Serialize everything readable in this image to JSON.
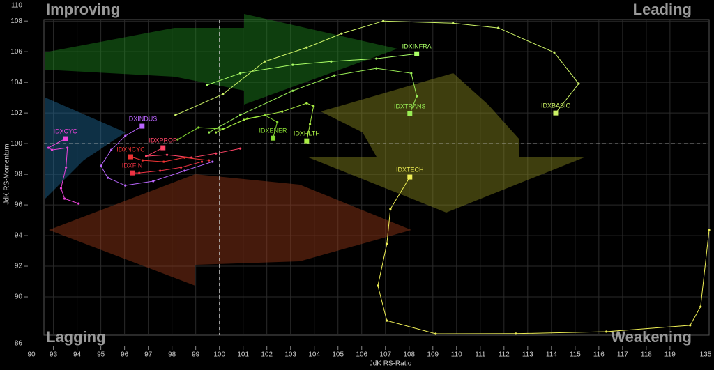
{
  "chart_data": {
    "type": "rrg",
    "x_label": "JdK RS-Ratio",
    "y_label": "JdK RS-Momentum",
    "quadrants": {
      "top_left": "Improving",
      "top_right": "Leading",
      "bottom_left": "Lagging",
      "bottom_right": "Weakening"
    },
    "xlim": [
      92.6,
      120.65
    ],
    "ylim": [
      87.5,
      108.1
    ],
    "xticks": [
      93,
      94,
      95,
      96,
      97,
      98,
      99,
      100,
      101,
      102,
      103,
      104,
      105,
      106,
      107,
      108,
      109,
      110,
      111,
      112,
      113,
      114,
      115,
      116,
      117,
      118,
      119
    ],
    "yticks": [
      90,
      92,
      94,
      96,
      98,
      100,
      102,
      104,
      106,
      108
    ],
    "x_break_ticks": [
      90,
      135
    ],
    "y_break_ticks": [
      110,
      86
    ],
    "reference_x": 100,
    "reference_y": 100,
    "grid": true,
    "series": [
      {
        "name": "IDXINFRA",
        "color": "#aaff66",
        "x": [
          99.47,
          100.88,
          103.09,
          104.71,
          106.62,
          108.32
        ],
        "y": [
          103.82,
          104.59,
          105.14,
          105.36,
          105.55,
          105.86
        ]
      },
      {
        "name": "IDXBASIC",
        "color": "#ccf266",
        "x": [
          98.15,
          100.15,
          101.91,
          103.68,
          105.15,
          106.91,
          109.85,
          111.76,
          114.12,
          115.15,
          114.18
        ],
        "y": [
          101.86,
          103.23,
          105.36,
          106.27,
          107.18,
          108.0,
          107.86,
          107.55,
          105.95,
          103.91,
          102.0
        ]
      },
      {
        "name": "IDXTRANS",
        "color": "#99ee55",
        "x": [
          99.56,
          100.88,
          103.09,
          104.85,
          106.62,
          108.09,
          108.32,
          108.03
        ],
        "y": [
          100.73,
          101.86,
          103.45,
          104.45,
          104.91,
          104.59,
          103.09,
          101.95
        ]
      },
      {
        "name": "IDXENER",
        "color": "#88dd33",
        "x": [
          98.24,
          99.12,
          100.15,
          101.18,
          101.91,
          102.44,
          102.26
        ],
        "y": [
          100.27,
          101.05,
          100.95,
          101.64,
          101.86,
          101.41,
          100.36
        ]
      },
      {
        "name": "IDXHLTH",
        "color": "#aaee44",
        "x": [
          99.85,
          101.03,
          102.65,
          103.68,
          103.97,
          103.82,
          103.68
        ],
        "y": [
          100.73,
          101.55,
          102.09,
          102.64,
          102.45,
          101.27,
          100.18
        ]
      },
      {
        "name": "IDXINDUS",
        "color": "#bb66ff",
        "x": [
          99.71,
          98.53,
          97.21,
          96.03,
          95.29,
          95.0,
          95.44,
          96.03,
          96.74
        ],
        "y": [
          98.82,
          98.23,
          97.55,
          97.27,
          97.77,
          98.55,
          99.59,
          100.5,
          101.14
        ]
      },
      {
        "name": "IDXCYC",
        "color": "#ee44dd",
        "x": [
          94.06,
          93.47,
          93.32,
          93.53,
          93.59,
          92.94,
          92.79,
          93.5
        ],
        "y": [
          96.09,
          96.41,
          97.09,
          98.45,
          99.73,
          99.59,
          99.73,
          100.32
        ]
      },
      {
        "name": "IDXPROP",
        "color": "#ff4466",
        "x": [
          100.88,
          99.85,
          98.82,
          97.79,
          96.91,
          97.62
        ],
        "y": [
          99.68,
          99.36,
          99.09,
          99.27,
          99.18,
          99.73
        ]
      },
      {
        "name": "IDXNCYC",
        "color": "#ee3333",
        "x": [
          99.56,
          98.53,
          97.65,
          96.76,
          96.26
        ],
        "y": [
          98.91,
          99.09,
          98.82,
          98.91,
          99.14
        ]
      },
      {
        "name": "IDXFIN",
        "color": "#ee3344",
        "x": [
          99.26,
          98.38,
          97.5,
          96.62,
          96.32
        ],
        "y": [
          98.82,
          98.45,
          98.23,
          98.09,
          98.09
        ]
      },
      {
        "name": "IDXTECH",
        "color": "#eeee55",
        "x": [
          120.65,
          120.29,
          119.85,
          116.32,
          112.5,
          109.12,
          107.06,
          106.68,
          107.06,
          107.21,
          108.03
        ],
        "y": [
          94.36,
          89.36,
          88.14,
          87.73,
          87.6,
          87.59,
          88.45,
          90.73,
          93.45,
          95.73,
          97.82
        ]
      }
    ]
  }
}
